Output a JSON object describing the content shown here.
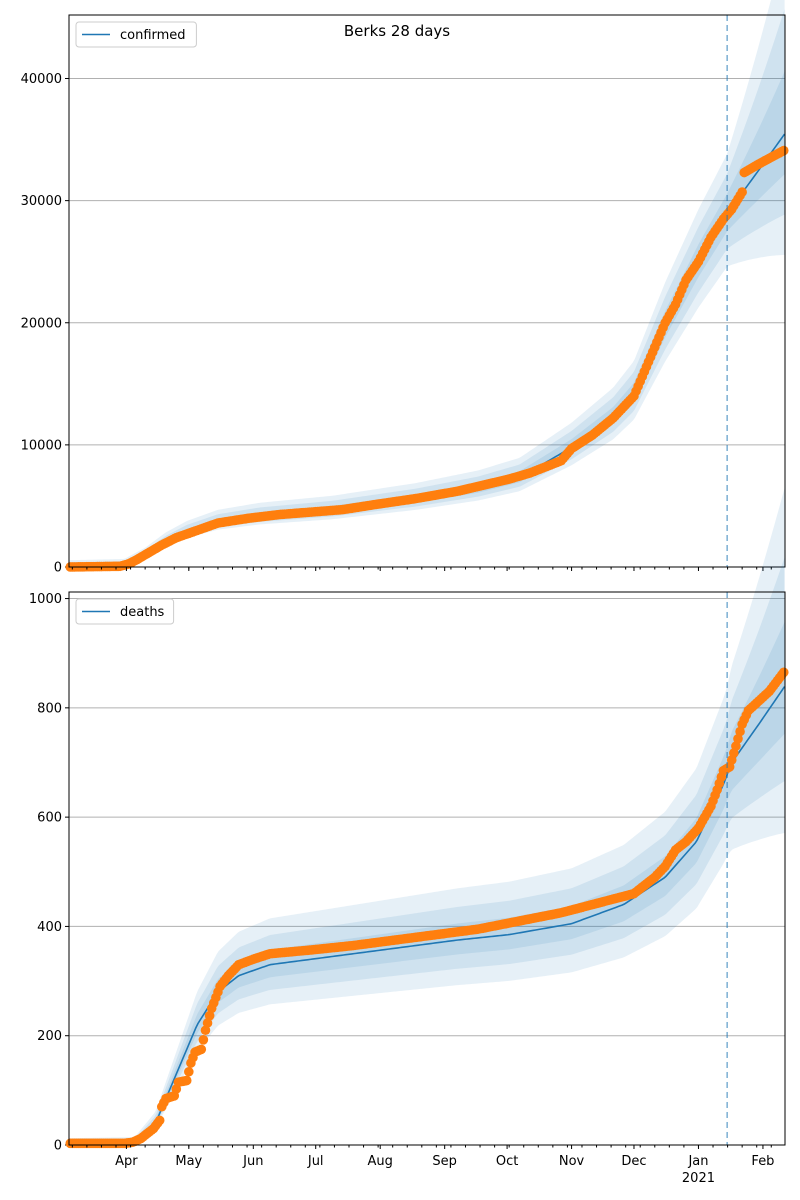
{
  "chart_data": [
    {
      "type": "line",
      "title": "Berks 28 days",
      "x_unit": "days since 2020-03-01",
      "xlim": [
        3.4,
        347.6
      ],
      "ylim": [
        0,
        45200
      ],
      "yticks": [
        0,
        10000,
        20000,
        30000,
        40000
      ],
      "legend": {
        "label": "confirmed",
        "placement": "top-left"
      },
      "forecast_start_day": 319.8,
      "grid": "horizontal",
      "model": [
        [
          0,
          0
        ],
        [
          30,
          100
        ],
        [
          40,
          900
        ],
        [
          50,
          2000
        ],
        [
          60,
          2800
        ],
        [
          75,
          3600
        ],
        [
          95,
          4100
        ],
        [
          130,
          4600
        ],
        [
          170,
          5500
        ],
        [
          200,
          6400
        ],
        [
          220,
          7300
        ],
        [
          245,
          9800
        ],
        [
          265,
          12300
        ],
        [
          275,
          14200
        ],
        [
          290,
          19800
        ],
        [
          306,
          25000
        ],
        [
          320,
          29000
        ],
        [
          335,
          32500
        ],
        [
          347.6,
          35500
        ]
      ],
      "band_spread": [
        0.05,
        0.1,
        0.15
      ],
      "forecast_spread_end": {
        "upper": 0.27,
        "lower": 0.13
      },
      "observed": [
        [
          3,
          0
        ],
        [
          28,
          60
        ],
        [
          32,
          250
        ],
        [
          36,
          600
        ],
        [
          40,
          1000
        ],
        [
          48,
          1800
        ],
        [
          55,
          2400
        ],
        [
          65,
          3000
        ],
        [
          75,
          3600
        ],
        [
          90,
          4000
        ],
        [
          105,
          4300
        ],
        [
          120,
          4500
        ],
        [
          135,
          4700
        ],
        [
          150,
          5100
        ],
        [
          170,
          5600
        ],
        [
          190,
          6200
        ],
        [
          205,
          6800
        ],
        [
          215,
          7200
        ],
        [
          225,
          7700
        ],
        [
          240,
          8700
        ],
        [
          245,
          9700
        ],
        [
          255,
          10800
        ],
        [
          265,
          12200
        ],
        [
          275,
          14000
        ],
        [
          280,
          16000
        ],
        [
          285,
          18000
        ],
        [
          290,
          20000
        ],
        [
          295,
          21500
        ],
        [
          300,
          23500
        ],
        [
          306,
          25000
        ],
        [
          312,
          27000
        ],
        [
          318,
          28500
        ],
        [
          322,
          29300
        ],
        [
          327,
          30700
        ],
        [
          328,
          32300
        ],
        [
          335,
          33000
        ],
        [
          347,
          34100
        ]
      ]
    },
    {
      "type": "line",
      "title": "",
      "x_unit": "days since 2020-03-01",
      "xlim": [
        3.4,
        347.6
      ],
      "ylim": [
        0,
        1012
      ],
      "yticks": [
        0,
        200,
        400,
        600,
        800,
        1000
      ],
      "legend": {
        "label": "deaths",
        "placement": "top-left"
      },
      "forecast_start_day": 319.8,
      "grid": "horizontal",
      "model": [
        [
          0,
          0
        ],
        [
          35,
          2
        ],
        [
          45,
          40
        ],
        [
          55,
          130
        ],
        [
          65,
          220
        ],
        [
          75,
          280
        ],
        [
          85,
          310
        ],
        [
          100,
          330
        ],
        [
          130,
          345
        ],
        [
          160,
          360
        ],
        [
          190,
          375
        ],
        [
          215,
          385
        ],
        [
          245,
          405
        ],
        [
          270,
          440
        ],
        [
          290,
          490
        ],
        [
          305,
          555
        ],
        [
          318,
          660
        ],
        [
          322,
          700
        ],
        [
          335,
          770
        ],
        [
          347.6,
          840
        ]
      ],
      "band_spread": [
        0.07,
        0.14,
        0.22
      ],
      "forecast_spread_end": {
        "upper": 0.2,
        "lower": 0.1
      },
      "observed": [
        [
          3,
          3
        ],
        [
          30,
          3
        ],
        [
          34,
          5
        ],
        [
          38,
          12
        ],
        [
          44,
          30
        ],
        [
          47,
          45
        ],
        [
          48,
          70
        ],
        [
          50,
          85
        ],
        [
          54,
          90
        ],
        [
          56,
          115
        ],
        [
          60,
          118
        ],
        [
          62,
          150
        ],
        [
          64,
          170
        ],
        [
          67,
          175
        ],
        [
          69,
          210
        ],
        [
          72,
          250
        ],
        [
          76,
          290
        ],
        [
          80,
          310
        ],
        [
          85,
          330
        ],
        [
          92,
          340
        ],
        [
          100,
          350
        ],
        [
          120,
          357
        ],
        [
          140,
          365
        ],
        [
          160,
          375
        ],
        [
          180,
          385
        ],
        [
          200,
          395
        ],
        [
          220,
          410
        ],
        [
          240,
          425
        ],
        [
          260,
          445
        ],
        [
          275,
          460
        ],
        [
          285,
          490
        ],
        [
          290,
          510
        ],
        [
          295,
          540
        ],
        [
          300,
          555
        ],
        [
          306,
          580
        ],
        [
          312,
          620
        ],
        [
          315,
          650
        ],
        [
          318,
          685
        ],
        [
          321,
          692
        ],
        [
          324,
          730
        ],
        [
          327,
          770
        ],
        [
          330,
          795
        ],
        [
          340,
          830
        ],
        [
          347,
          865
        ]
      ]
    }
  ],
  "x_axis": {
    "months": [
      [
        "Apr",
        31
      ],
      [
        "May",
        61
      ],
      [
        "Jun",
        92
      ],
      [
        "Jul",
        122
      ],
      [
        "Aug",
        153
      ],
      [
        "Sep",
        184
      ],
      [
        "Oct",
        214
      ],
      [
        "Nov",
        245
      ],
      [
        "Dec",
        275
      ],
      [
        "Jan",
        306
      ],
      [
        "Feb",
        337
      ]
    ],
    "year_label": "2021",
    "year_day": 306
  },
  "colors": {
    "model": "#1f77b4",
    "observed": "#ff7f0e",
    "band": "#1f77b4",
    "grid": "#b0b0b0"
  }
}
